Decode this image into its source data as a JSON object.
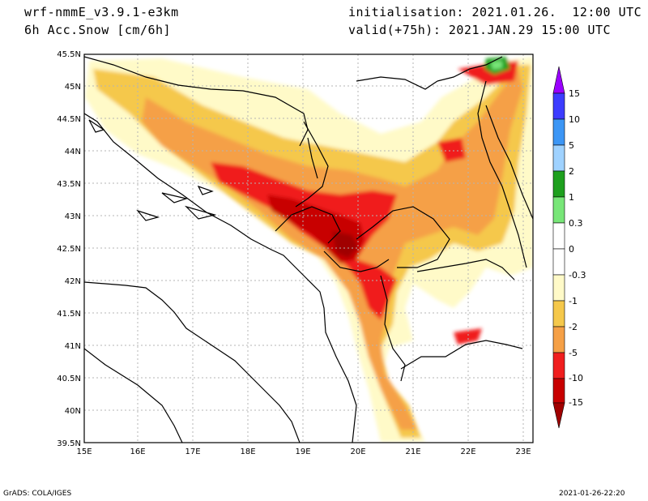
{
  "header": {
    "model": "wrf-nmmE_v3.9.1-e3km",
    "field": "6h Acc.Snow [cm/6h]",
    "init": "initialisation: 2021.01.26.  12:00 UTC",
    "valid": "valid(+75h): 2021.JAN.29 15:00 UTC"
  },
  "footer": {
    "left": "GrADS: COLA/IGES",
    "right": "2021-01-26-22:20"
  },
  "map": {
    "lon_ticks": [
      "15E",
      "16E",
      "17E",
      "18E",
      "19E",
      "20E",
      "21E",
      "22E",
      "23E"
    ],
    "lat_ticks": [
      "45.5N",
      "45N",
      "44.5N",
      "44N",
      "43.5N",
      "43N",
      "42.5N",
      "42N",
      "41.5N",
      "41N",
      "40.5N",
      "40N",
      "39.5N"
    ]
  },
  "colorbar": {
    "labels": [
      "15",
      "10",
      "5",
      "2",
      "1",
      "0.3",
      "0",
      "-0.3",
      "-1",
      "-2",
      "-5",
      "-10",
      "-15"
    ],
    "colors": [
      "#9a00ff",
      "#3c3cff",
      "#3c96f5",
      "#9fd2ff",
      "#1ea01e",
      "#78e678",
      "#ffffff",
      "#fffac8",
      "#f5c84b",
      "#f5a046",
      "#f01e1e",
      "#c80000",
      "#a00000"
    ]
  },
  "snow_palette": {
    "light": "#fffac8",
    "yellow": "#f5c84b",
    "orange": "#f5a046",
    "red": "#f01e1e",
    "darkred": "#c80000",
    "maroon": "#a00000",
    "green": "#1ea01e",
    "lightgreen": "#78e678"
  }
}
